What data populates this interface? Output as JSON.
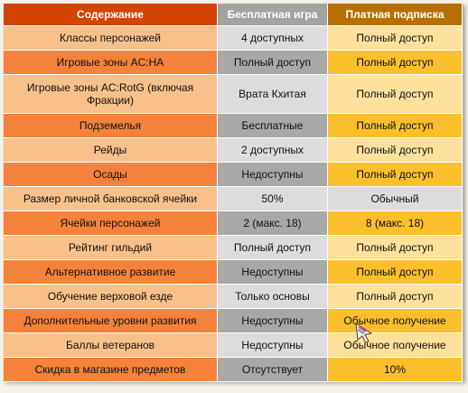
{
  "headers": {
    "content": "Содержание",
    "free": "Бесплатная игра",
    "paid": "Платная подписка"
  },
  "rows": [
    {
      "content": "Классы персонажей",
      "free": "4 доступных",
      "paid": "Полный доступ"
    },
    {
      "content": "Игровые зоны AC:HA",
      "free": "Полный доступ",
      "paid": "Полный доступ"
    },
    {
      "content": "Игровые зоны AC:RotG (включая Фракции)",
      "free": "Врата Кхитая",
      "paid": "Полный доступ"
    },
    {
      "content": "Подземелья",
      "free": "Бесплатные",
      "paid": "Полный доступ"
    },
    {
      "content": "Рейды",
      "free": "2 доступных",
      "paid": "Полный доступ"
    },
    {
      "content": "Осады",
      "free": "Недоступны",
      "paid": "Полный доступ"
    },
    {
      "content": "Размер личной банковской ячейки",
      "free": "50%",
      "paid": "Обычный"
    },
    {
      "content": "Ячейки персонажей",
      "free": "2 (макс. 18)",
      "paid": "8 (макс. 18)"
    },
    {
      "content": "Рейтинг гильдий",
      "free": "Полный доступ",
      "paid": "Полный доступ"
    },
    {
      "content": "Альтернативное развитие",
      "free": "Недоступны",
      "paid": "Полный доступ"
    },
    {
      "content": "Обучение верховой езде",
      "free": "Только основы",
      "paid": "Полный доступ"
    },
    {
      "content": "Дополнительные уровни развития",
      "free": "Недоступны",
      "paid": "Обычное получение"
    },
    {
      "content": "Баллы ветеранов",
      "free": "Недоступны",
      "paid": "Обычное получение"
    },
    {
      "content": "Скидка в магазине предметов",
      "free": "Отсутствует",
      "paid": "10%"
    }
  ],
  "colors": {
    "header_content": "#d24400",
    "header_free": "#a3a3a3",
    "header_paid": "#b77000",
    "content_dark": "#f4823a",
    "content_light": "#f9c08a",
    "free_dark": "#a8a8a8",
    "free_light": "#dcdcdc",
    "paid_dark": "#fbbf2c",
    "paid_light": "#fde19a"
  },
  "cursor": {
    "icon": "hand-pointer-cursor-icon"
  }
}
